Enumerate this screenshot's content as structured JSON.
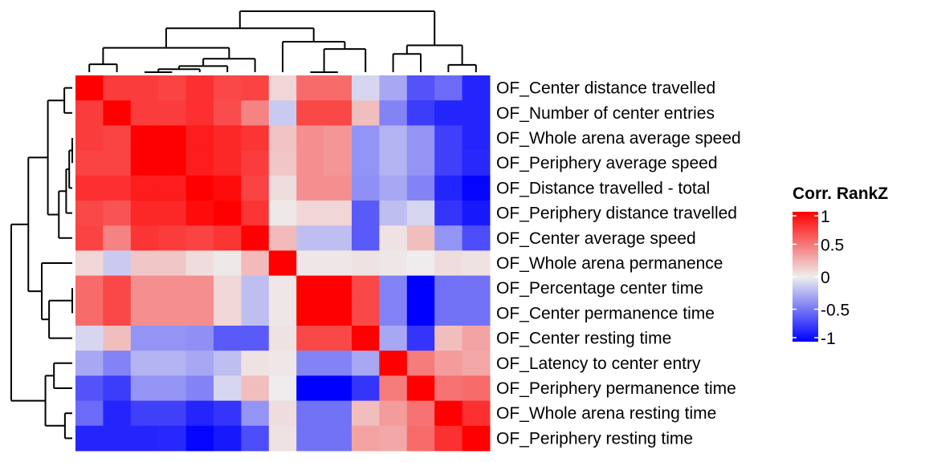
{
  "chart_data": {
    "type": "heatmap",
    "title": "",
    "labels": [
      "OF_Center distance travelled",
      "OF_Number of center entries",
      "OF_Whole arena average speed",
      "OF_Periphery average speed",
      "OF_Distance travelled - total",
      "OF_Periphery distance travelled",
      "OF_Center average speed",
      "OF_Whole arena permanence",
      "OF_Percentage center time",
      "OF_Center permanence time",
      "OF_Center resting time",
      "OF_Latency to center entry",
      "OF_Periphery permanence time",
      "OF_Whole arena resting time",
      "OF_Periphery resting time"
    ],
    "values": [
      [
        1.0,
        0.75,
        0.75,
        0.72,
        0.8,
        0.7,
        0.72,
        0.1,
        0.55,
        0.55,
        -0.1,
        -0.3,
        -0.65,
        -0.55,
        -0.85
      ],
      [
        0.75,
        1.0,
        0.75,
        0.75,
        0.8,
        0.68,
        0.45,
        -0.15,
        0.7,
        0.7,
        0.2,
        -0.45,
        -0.75,
        -0.85,
        -0.85
      ],
      [
        0.75,
        0.72,
        1.0,
        1.0,
        0.88,
        0.83,
        0.78,
        0.18,
        0.4,
        0.37,
        -0.38,
        -0.25,
        -0.38,
        -0.73,
        -0.85
      ],
      [
        0.72,
        0.72,
        1.0,
        1.0,
        0.88,
        0.83,
        0.75,
        0.17,
        0.4,
        0.37,
        -0.38,
        -0.25,
        -0.38,
        -0.73,
        -0.83
      ],
      [
        0.8,
        0.8,
        0.88,
        0.88,
        1.0,
        0.95,
        0.72,
        0.07,
        0.4,
        0.4,
        -0.4,
        -0.3,
        -0.45,
        -0.85,
        -0.98
      ],
      [
        0.7,
        0.65,
        0.83,
        0.83,
        0.95,
        1.0,
        0.78,
        0.02,
        0.1,
        0.1,
        -0.62,
        -0.2,
        -0.1,
        -0.78,
        -0.9
      ],
      [
        0.72,
        0.45,
        0.78,
        0.75,
        0.72,
        0.78,
        1.0,
        0.22,
        -0.2,
        -0.2,
        -0.62,
        0.05,
        0.2,
        -0.38,
        -0.68
      ],
      [
        0.1,
        -0.15,
        0.17,
        0.17,
        0.07,
        0.02,
        0.22,
        1.0,
        0.03,
        0.03,
        0.05,
        0.03,
        0.01,
        0.07,
        0.05
      ],
      [
        0.55,
        0.7,
        0.4,
        0.4,
        0.4,
        0.1,
        -0.2,
        0.03,
        1.0,
        1.0,
        0.7,
        -0.45,
        -1.0,
        -0.52,
        -0.52
      ],
      [
        0.55,
        0.7,
        0.4,
        0.4,
        0.4,
        0.1,
        -0.2,
        0.03,
        1.0,
        1.0,
        0.7,
        -0.45,
        -1.0,
        -0.52,
        -0.52
      ],
      [
        -0.1,
        0.2,
        -0.38,
        -0.38,
        -0.4,
        -0.62,
        -0.62,
        0.05,
        0.7,
        0.7,
        1.0,
        -0.3,
        -0.78,
        0.2,
        0.32
      ],
      [
        -0.3,
        -0.45,
        -0.25,
        -0.25,
        -0.3,
        -0.2,
        0.05,
        0.03,
        -0.45,
        -0.45,
        -0.3,
        1.0,
        0.48,
        0.35,
        0.3
      ],
      [
        -0.65,
        -0.75,
        -0.38,
        -0.38,
        -0.45,
        -0.1,
        0.2,
        0.01,
        -1.0,
        -1.0,
        -0.78,
        0.48,
        1.0,
        0.52,
        0.55
      ],
      [
        -0.55,
        -0.85,
        -0.73,
        -0.73,
        -0.85,
        -0.78,
        -0.38,
        0.07,
        -0.52,
        -0.52,
        0.2,
        0.35,
        0.52,
        1.0,
        0.8
      ],
      [
        -0.85,
        -0.85,
        -0.85,
        -0.83,
        -0.98,
        -0.9,
        -0.68,
        0.05,
        -0.52,
        -0.52,
        0.32,
        0.3,
        0.55,
        0.8,
        1.0
      ]
    ],
    "color_scale": {
      "low": "#0000FF",
      "mid": "#EEEEEE",
      "high": "#FF0000",
      "domain": [
        -1,
        0,
        1
      ]
    },
    "dendrogram": {
      "note": "merge tree; leaves are indices into labels; height is relative linkage distance (0-1)",
      "tree": {
        "h": 1.0,
        "children": [
          {
            "h": 0.72,
            "children": [
              {
                "h": 0.4,
                "children": [
                  {
                    "h": 0.13,
                    "children": [
                      0,
                      1
                    ]
                  },
                  {
                    "h": 0.22,
                    "children": [
                      {
                        "h": 0.1,
                        "children": [
                          {
                            "h": 0.05,
                            "children": [
                              {
                                "h": 0.0,
                                "children": [
                                  2,
                                  3
                                ]
                              },
                              4
                            ]
                          },
                          5
                        ]
                      },
                      6
                    ]
                  }
                ]
              },
              {
                "h": 0.5,
                "children": [
                  7,
                  {
                    "h": 0.38,
                    "children": [
                      {
                        "h": 0.0,
                        "children": [
                          8,
                          9
                        ]
                      },
                      10
                    ]
                  }
                ]
              }
            ]
          },
          {
            "h": 0.44,
            "children": [
              {
                "h": 0.3,
                "children": [
                  11,
                  12
                ]
              },
              {
                "h": 0.12,
                "children": [
                  13,
                  14
                ]
              }
            ]
          }
        ]
      }
    },
    "legend": {
      "title": "Corr. RankZ",
      "ticks": [
        1,
        0.5,
        0,
        -0.5,
        -1
      ],
      "tick_labels": [
        "1",
        "0.5",
        "0",
        "-0.5",
        "-1"
      ],
      "placement": "right"
    },
    "xlabel": "",
    "ylabel": "",
    "grid": false
  }
}
